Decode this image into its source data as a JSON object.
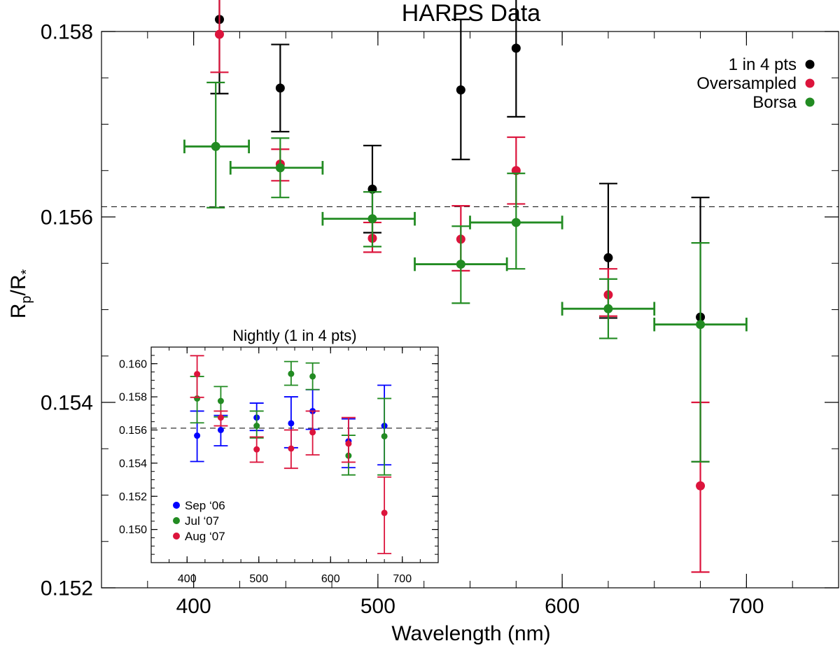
{
  "chart_data": [
    {
      "type": "scatter",
      "title": "HARPS Data",
      "xlabel": "Wavelength (nm)",
      "ylabel_main": "R",
      "ylabel_sub1": "p",
      "ylabel_mid": "/R",
      "ylabel_sub2": "*",
      "xlim": [
        350,
        750
      ],
      "ylim": [
        0.152,
        0.158
      ],
      "x_ticks": [
        400,
        500,
        600,
        700
      ],
      "x_tick_labels": [
        "400",
        "500",
        "600",
        "700"
      ],
      "y_ticks": [
        0.152,
        0.154,
        0.156,
        0.158
      ],
      "y_tick_labels": [
        "0.152",
        "0.154",
        "0.156",
        "0.158"
      ],
      "reference_line_y": 0.15611,
      "legend_position": "top-right",
      "series": [
        {
          "name": "1 in 4 pts",
          "color": "#000000",
          "points": [
            {
              "x": 414,
              "y": 0.15813,
              "ylow": 0.15733,
              "yhigh": 0.15895
            },
            {
              "x": 447,
              "y": 0.15739,
              "ylow": 0.15692,
              "yhigh": 0.15786
            },
            {
              "x": 497,
              "y": 0.1563,
              "ylow": 0.15583,
              "yhigh": 0.15677
            },
            {
              "x": 545,
              "y": 0.15737,
              "ylow": 0.15662,
              "yhigh": 0.15813
            },
            {
              "x": 575,
              "y": 0.15782,
              "ylow": 0.15708,
              "yhigh": 0.15856
            },
            {
              "x": 625,
              "y": 0.15556,
              "ylow": 0.15491,
              "yhigh": 0.15636
            },
            {
              "x": 675,
              "y": 0.15492,
              "ylow": 0.15336,
              "yhigh": 0.15621
            }
          ]
        },
        {
          "name": "Oversampled",
          "color": "#dc143c",
          "points": [
            {
              "x": 414,
              "y": 0.15797,
              "ylow": 0.15756,
              "yhigh": 0.15839
            },
            {
              "x": 447,
              "y": 0.15657,
              "ylow": 0.15639,
              "yhigh": 0.15673
            },
            {
              "x": 497,
              "y": 0.15577,
              "ylow": 0.15562,
              "yhigh": 0.15594
            },
            {
              "x": 545,
              "y": 0.15576,
              "ylow": 0.15542,
              "yhigh": 0.15612
            },
            {
              "x": 575,
              "y": 0.1565,
              "ylow": 0.15614,
              "yhigh": 0.15686
            },
            {
              "x": 625,
              "y": 0.15516,
              "ylow": 0.15493,
              "yhigh": 0.15544
            },
            {
              "x": 675,
              "y": 0.1531,
              "ylow": 0.15217,
              "yhigh": 0.154
            }
          ]
        },
        {
          "name": "Borsa",
          "color": "#228b22",
          "points": [
            {
              "x": 412,
              "y": 0.15676,
              "xlow": 395,
              "xhigh": 430,
              "ylow": 0.1561,
              "yhigh": 0.15745
            },
            {
              "x": 447,
              "y": 0.15653,
              "xlow": 420,
              "xhigh": 470,
              "ylow": 0.15621,
              "yhigh": 0.15685
            },
            {
              "x": 497,
              "y": 0.15598,
              "xlow": 470,
              "xhigh": 520,
              "ylow": 0.15568,
              "yhigh": 0.15627
            },
            {
              "x": 545,
              "y": 0.15549,
              "xlow": 520,
              "xhigh": 570,
              "ylow": 0.15507,
              "yhigh": 0.1559
            },
            {
              "x": 575,
              "y": 0.15594,
              "xlow": 550,
              "xhigh": 600,
              "ylow": 0.15544,
              "yhigh": 0.15647
            },
            {
              "x": 625,
              "y": 0.15501,
              "xlow": 600,
              "xhigh": 650,
              "ylow": 0.15469,
              "yhigh": 0.15533
            },
            {
              "x": 675,
              "y": 0.15484,
              "xlow": 650,
              "xhigh": 700,
              "ylow": 0.15336,
              "yhigh": 0.15572
            }
          ]
        }
      ]
    },
    {
      "type": "scatter",
      "title": "Nightly (1 in 4 pts)",
      "xlim": [
        350,
        750
      ],
      "ylim": [
        0.148,
        0.161
      ],
      "x_ticks": [
        400,
        500,
        600,
        700
      ],
      "x_tick_labels": [
        "400",
        "500",
        "600",
        "700"
      ],
      "y_ticks": [
        0.15,
        0.152,
        0.154,
        0.156,
        0.158,
        0.16
      ],
      "y_tick_labels": [
        "0.150",
        "0.152",
        "0.154",
        "0.156",
        "0.158",
        "0.160"
      ],
      "reference_line_y": 0.15611,
      "legend_position": "bottom-left",
      "series": [
        {
          "name": "Sep ‘06",
          "color": "#0000ff",
          "points": [
            {
              "x": 414,
              "y": 0.15566,
              "ylow": 0.1541,
              "yhigh": 0.15714
            },
            {
              "x": 447,
              "y": 0.156,
              "ylow": 0.15505,
              "yhigh": 0.15688
            },
            {
              "x": 497,
              "y": 0.15675,
              "ylow": 0.15597,
              "yhigh": 0.15762
            },
            {
              "x": 545,
              "y": 0.1564,
              "ylow": 0.15493,
              "yhigh": 0.158
            },
            {
              "x": 575,
              "y": 0.15714,
              "ylow": 0.15604,
              "yhigh": 0.15843
            },
            {
              "x": 625,
              "y": 0.15532,
              "ylow": 0.15373,
              "yhigh": 0.15667
            },
            {
              "x": 675,
              "y": 0.15625,
              "ylow": 0.1539,
              "yhigh": 0.1587
            }
          ]
        },
        {
          "name": "Jul ‘07",
          "color": "#228b22",
          "points": [
            {
              "x": 414,
              "y": 0.1579,
              "ylow": 0.15643,
              "yhigh": 0.15923
            },
            {
              "x": 447,
              "y": 0.15775,
              "ylow": 0.15679,
              "yhigh": 0.15862
            },
            {
              "x": 497,
              "y": 0.15625,
              "ylow": 0.15552,
              "yhigh": 0.15714
            },
            {
              "x": 545,
              "y": 0.15939,
              "ylow": 0.1587,
              "yhigh": 0.16013
            },
            {
              "x": 575,
              "y": 0.15923,
              "ylow": 0.15844,
              "yhigh": 0.16004
            },
            {
              "x": 625,
              "y": 0.15445,
              "ylow": 0.15329,
              "yhigh": 0.15568
            },
            {
              "x": 675,
              "y": 0.15562,
              "ylow": 0.15329,
              "yhigh": 0.1579
            }
          ]
        },
        {
          "name": "Aug ‘07",
          "color": "#dc143c",
          "points": [
            {
              "x": 414,
              "y": 0.15937,
              "ylow": 0.15797,
              "yhigh": 0.16048
            },
            {
              "x": 447,
              "y": 0.15675,
              "ylow": 0.15625,
              "yhigh": 0.15714
            },
            {
              "x": 497,
              "y": 0.15483,
              "ylow": 0.15406,
              "yhigh": 0.15558
            },
            {
              "x": 545,
              "y": 0.15488,
              "ylow": 0.15369,
              "yhigh": 0.156
            },
            {
              "x": 575,
              "y": 0.15586,
              "ylow": 0.1545,
              "yhigh": 0.15714
            },
            {
              "x": 625,
              "y": 0.15518,
              "ylow": 0.15406,
              "yhigh": 0.15675
            },
            {
              "x": 675,
              "y": 0.151,
              "ylow": 0.14855,
              "yhigh": 0.15316
            }
          ]
        }
      ]
    }
  ]
}
